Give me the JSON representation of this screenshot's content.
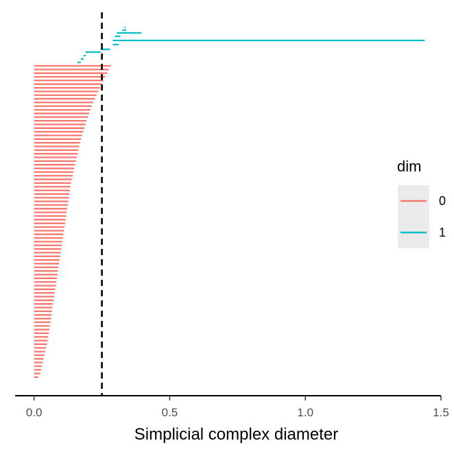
{
  "chart_data": {
    "type": "barcode",
    "xlabel": "Simplicial complex diameter",
    "xlim": [
      -0.07,
      1.5
    ],
    "xticks": [
      {
        "value": 0.0,
        "label": "0.0"
      },
      {
        "value": 0.5,
        "label": "0.5"
      },
      {
        "value": 1.0,
        "label": "1.0"
      },
      {
        "value": 1.5,
        "label": "1.5"
      }
    ],
    "threshold": 0.25,
    "legend": {
      "title": "dim",
      "position": "right",
      "entries": [
        {
          "label": "0",
          "color": "#F8766D"
        },
        {
          "label": "1",
          "color": "#00BFC4"
        }
      ]
    },
    "series": [
      {
        "name": "0",
        "color": "#F8766D",
        "intervals": [
          [
            0,
            0.283
          ],
          [
            0,
            0.275
          ],
          [
            0,
            0.27
          ],
          [
            0,
            0.262
          ],
          [
            0,
            0.255
          ],
          [
            0,
            0.248
          ],
          [
            0,
            0.242
          ],
          [
            0,
            0.236
          ],
          [
            0,
            0.23
          ],
          [
            0,
            0.224
          ],
          [
            0,
            0.218
          ],
          [
            0,
            0.213
          ],
          [
            0,
            0.208
          ],
          [
            0,
            0.203
          ],
          [
            0,
            0.198
          ],
          [
            0,
            0.193
          ],
          [
            0,
            0.189
          ],
          [
            0,
            0.185
          ],
          [
            0,
            0.181
          ],
          [
            0,
            0.177
          ],
          [
            0,
            0.173
          ],
          [
            0,
            0.169
          ],
          [
            0,
            0.166
          ],
          [
            0,
            0.163
          ],
          [
            0,
            0.16
          ],
          [
            0,
            0.157
          ],
          [
            0,
            0.154
          ],
          [
            0,
            0.151
          ],
          [
            0,
            0.148
          ],
          [
            0,
            0.145
          ],
          [
            0,
            0.142
          ],
          [
            0,
            0.139
          ],
          [
            0,
            0.136
          ],
          [
            0,
            0.134
          ],
          [
            0,
            0.132
          ],
          [
            0,
            0.13
          ],
          [
            0,
            0.128
          ],
          [
            0,
            0.126
          ],
          [
            0,
            0.124
          ],
          [
            0,
            0.122
          ],
          [
            0,
            0.12
          ],
          [
            0,
            0.118
          ],
          [
            0,
            0.116
          ],
          [
            0,
            0.114
          ],
          [
            0,
            0.112
          ],
          [
            0,
            0.11
          ],
          [
            0,
            0.108
          ],
          [
            0,
            0.106
          ],
          [
            0,
            0.104
          ],
          [
            0,
            0.102
          ],
          [
            0,
            0.1
          ],
          [
            0,
            0.098
          ],
          [
            0,
            0.096
          ],
          [
            0,
            0.094
          ],
          [
            0,
            0.092
          ],
          [
            0,
            0.09
          ],
          [
            0,
            0.088
          ],
          [
            0,
            0.086
          ],
          [
            0,
            0.084
          ],
          [
            0,
            0.082
          ],
          [
            0,
            0.08
          ],
          [
            0,
            0.078
          ],
          [
            0,
            0.076
          ],
          [
            0,
            0.074
          ],
          [
            0,
            0.072
          ],
          [
            0,
            0.07
          ],
          [
            0,
            0.068
          ],
          [
            0,
            0.066
          ],
          [
            0,
            0.064
          ],
          [
            0,
            0.062
          ],
          [
            0,
            0.06
          ],
          [
            0,
            0.058
          ],
          [
            0,
            0.056
          ],
          [
            0,
            0.054
          ],
          [
            0,
            0.052
          ],
          [
            0,
            0.05
          ],
          [
            0,
            0.047
          ],
          [
            0,
            0.044
          ],
          [
            0,
            0.041
          ],
          [
            0,
            0.038
          ],
          [
            0,
            0.035
          ],
          [
            0,
            0.032
          ],
          [
            0,
            0.029
          ],
          [
            0,
            0.026
          ],
          [
            0,
            0.022
          ],
          [
            0,
            0.016
          ]
        ]
      },
      {
        "name": "1",
        "color": "#00BFC4",
        "intervals": [
          [
            0.16,
            0.172
          ],
          [
            0.172,
            0.183
          ],
          [
            0.183,
            0.19
          ],
          [
            0.19,
            0.245
          ],
          [
            0.245,
            0.28
          ],
          [
            0.29,
            1.44
          ],
          [
            0.29,
            0.312
          ],
          [
            0.298,
            0.318
          ],
          [
            0.305,
            0.395
          ],
          [
            0.325,
            0.34
          ],
          [
            0.334,
            0.338
          ]
        ]
      }
    ]
  }
}
